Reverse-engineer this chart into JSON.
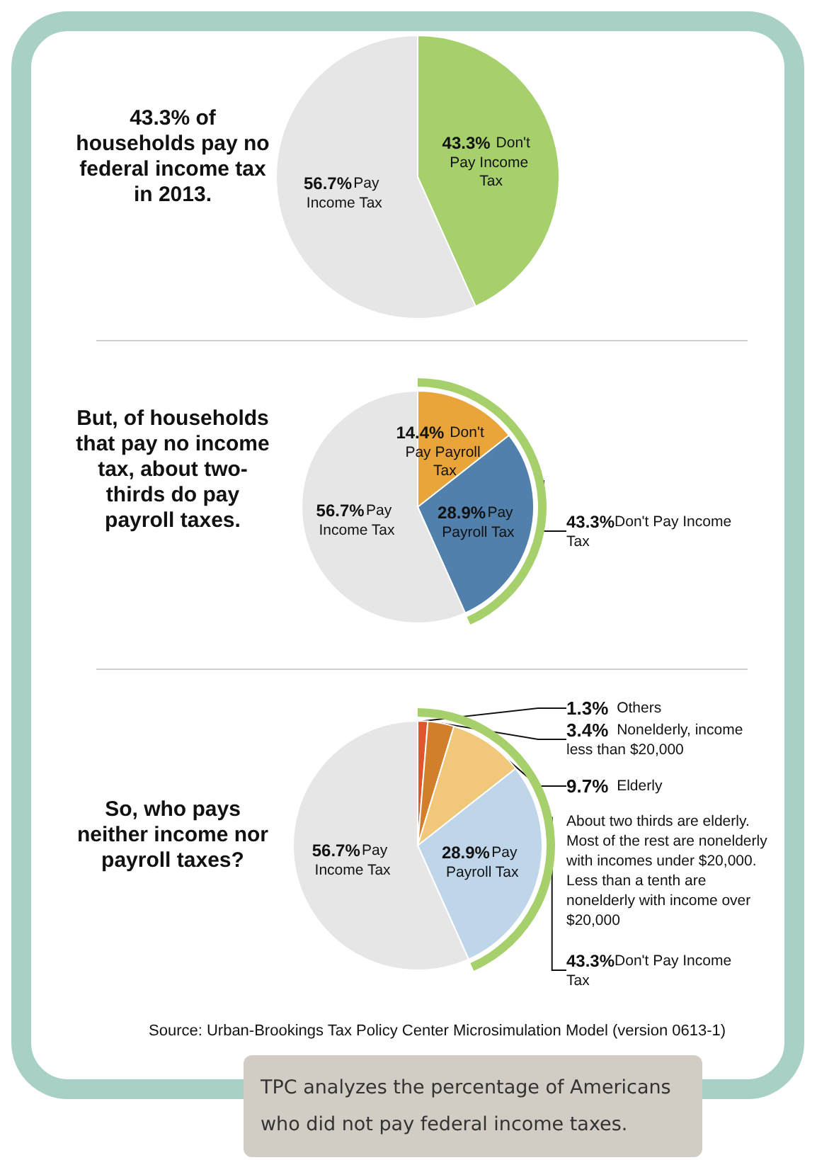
{
  "chart_data": [
    {
      "type": "pie",
      "title": "43.3% of households pay no federal income tax in 2013.",
      "categories": [
        "Don't Pay Income Tax",
        "Pay Income Tax"
      ],
      "values": [
        43.3,
        56.7
      ],
      "value_labels": [
        "43.3%",
        "56.7%"
      ],
      "colors": [
        "#a6d06b",
        "#e6e6e6"
      ],
      "legend": false
    },
    {
      "type": "pie",
      "title": "But, of households that pay no income tax, about two-thirds do pay payroll taxes.",
      "legend": false,
      "categories": [
        "Don't Pay Payroll Tax",
        "Pay Payroll Tax",
        "Pay Income Tax",
        "Don't Pay Income Tax"
      ],
      "colors": [
        "#e9a43a",
        "#5080ab",
        "#e6e6e6",
        "#a6d06b"
      ],
      "series": [
        {
          "values": [
            14.4,
            28.9,
            56.7,
            null
          ],
          "value_labels": [
            "14.4%",
            "28.9%",
            "56.7%",
            null
          ]
        },
        {
          "type": "donut",
          "values": [
            null,
            null,
            null,
            43.3
          ],
          "value_labels": [
            null,
            null,
            null,
            "43.3%"
          ]
        }
      ]
    },
    {
      "type": "pie",
      "title": "So, who pays neither income nor payroll taxes?",
      "legend": false,
      "categories": [
        "Others",
        "Nonelderly, income less than $20,000",
        "Elderly",
        "Pay Payroll Tax",
        "Pay Income Tax",
        "Don't Pay Income Tax"
      ],
      "colors": [
        "#e0562c",
        "#d27f2c",
        "#f1c87a",
        "#bfd5ea",
        "#e6e6e6",
        "#a6d06b"
      ],
      "series": [
        {
          "values": [
            1.3,
            3.4,
            9.7,
            28.9,
            56.7,
            null
          ],
          "value_labels": [
            "1.3%",
            "3.4%",
            "9.7%",
            "28.9%",
            "56.7%",
            null
          ]
        },
        {
          "type": "donut",
          "values": [
            null,
            null,
            null,
            null,
            null,
            43.3
          ],
          "value_labels": [
            null,
            null,
            null,
            null,
            null,
            "43.3%"
          ]
        }
      ],
      "annotations": [
        "About two thirds are elderly. Most of the rest are nonelderly with incomes under $20,000. Less than a tenth are nonelderly with income over $20,000",
        "Source: Urban-Brookings Tax Policy Center Microsimulation Model (version 0613-1)",
        "TPC analyzes the percentage of Americans who did not pay federal income taxes."
      ]
    }
  ]
}
